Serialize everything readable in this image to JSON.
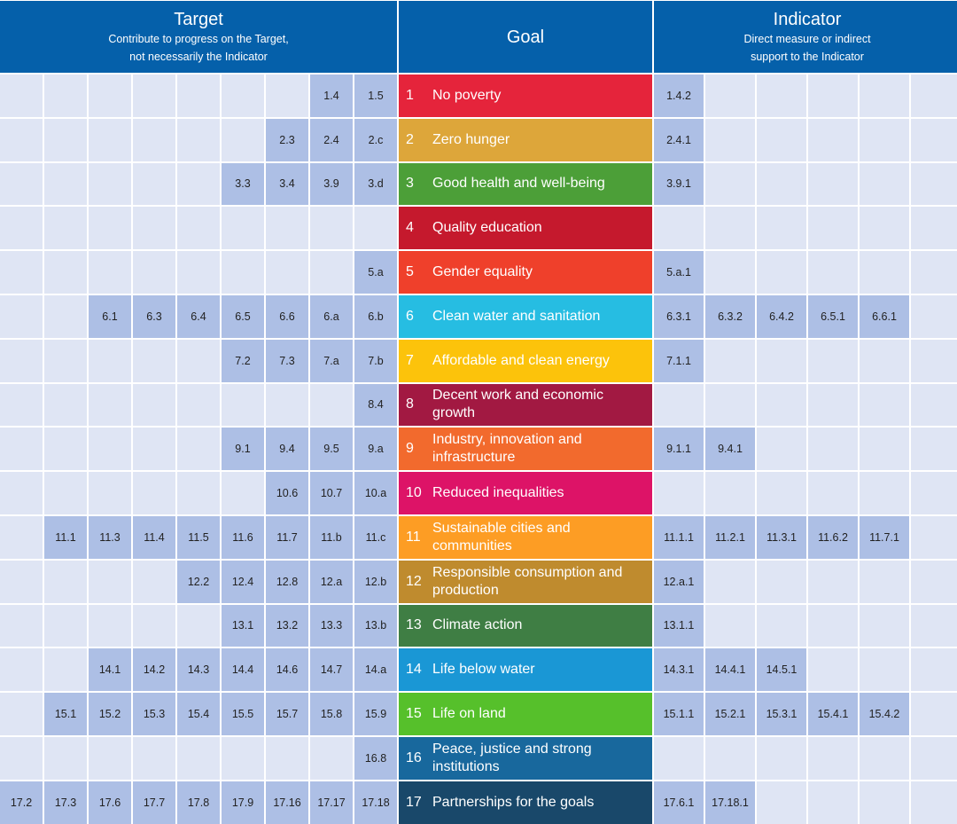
{
  "headers": {
    "target": {
      "title": "Target",
      "subtitle_line1": "Contribute to progress on the Target,",
      "subtitle_line2": "not necessarily the Indicator"
    },
    "goal": {
      "title": "Goal"
    },
    "indicator": {
      "title": "Indicator",
      "subtitle_line1": "Direct measure or indirect",
      "subtitle_line2": "support to the Indicator"
    }
  },
  "colors": {
    "header_bg": "#0560aa",
    "cell_empty": "#dfe5f4",
    "cell_filled": "#adbfe5"
  },
  "rows": [
    {
      "num": "1",
      "goal": "No poverty",
      "color": "#e5243b",
      "targets": [
        "",
        "",
        "",
        "",
        "",
        "",
        "",
        "1.4",
        "1.5"
      ],
      "indicators": [
        "1.4.2",
        "",
        "",
        "",
        "",
        ""
      ]
    },
    {
      "num": "2",
      "goal": "Zero hunger",
      "color": "#dda63a",
      "targets": [
        "",
        "",
        "",
        "",
        "",
        "",
        "2.3",
        "2.4",
        "2.c"
      ],
      "indicators": [
        "2.4.1",
        "",
        "",
        "",
        "",
        ""
      ]
    },
    {
      "num": "3",
      "goal": "Good health and well-being",
      "color": "#4c9f38",
      "targets": [
        "",
        "",
        "",
        "",
        "",
        "3.3",
        "3.4",
        "3.9",
        "3.d"
      ],
      "indicators": [
        "3.9.1",
        "",
        "",
        "",
        "",
        ""
      ]
    },
    {
      "num": "4",
      "goal": "Quality education",
      "color": "#c5192d",
      "targets": [
        "",
        "",
        "",
        "",
        "",
        "",
        "",
        "",
        ""
      ],
      "indicators": [
        "",
        "",
        "",
        "",
        "",
        ""
      ]
    },
    {
      "num": "5",
      "goal": "Gender equality",
      "color": "#ef402b",
      "targets": [
        "",
        "",
        "",
        "",
        "",
        "",
        "",
        "",
        "5.a"
      ],
      "indicators": [
        "5.a.1",
        "",
        "",
        "",
        "",
        ""
      ]
    },
    {
      "num": "6",
      "goal": "Clean water and sanitation",
      "color": "#26bde2",
      "targets": [
        "",
        "",
        "6.1",
        "6.3",
        "6.4",
        "6.5",
        "6.6",
        "6.a",
        "6.b"
      ],
      "indicators": [
        "6.3.1",
        "6.3.2",
        "6.4.2",
        "6.5.1",
        "6.6.1",
        ""
      ]
    },
    {
      "num": "7",
      "goal": "Affordable and clean energy",
      "color": "#fcc30b",
      "targets": [
        "",
        "",
        "",
        "",
        "",
        "7.2",
        "7.3",
        "7.a",
        "7.b"
      ],
      "indicators": [
        "7.1.1",
        "",
        "",
        "",
        "",
        ""
      ]
    },
    {
      "num": "8",
      "goal": "Decent work and economic growth",
      "color": "#a21942",
      "targets": [
        "",
        "",
        "",
        "",
        "",
        "",
        "",
        "",
        "8.4"
      ],
      "indicators": [
        "",
        "",
        "",
        "",
        "",
        ""
      ]
    },
    {
      "num": "9",
      "goal": "Industry, innovation and infrastructure",
      "color": "#f26a2d",
      "targets": [
        "",
        "",
        "",
        "",
        "",
        "9.1",
        "9.4",
        "9.5",
        "9.a"
      ],
      "indicators": [
        "9.1.1",
        "9.4.1",
        "",
        "",
        "",
        ""
      ]
    },
    {
      "num": "10",
      "goal": "Reduced inequalities",
      "color": "#dd1367",
      "targets": [
        "",
        "",
        "",
        "",
        "",
        "",
        "10.6",
        "10.7",
        "10.a"
      ],
      "indicators": [
        "",
        "",
        "",
        "",
        "",
        ""
      ]
    },
    {
      "num": "11",
      "goal": "Sustainable cities and communities",
      "color": "#fd9d24",
      "targets": [
        "",
        "11.1",
        "11.3",
        "11.4",
        "11.5",
        "11.6",
        "11.7",
        "11.b",
        "11.c"
      ],
      "indicators": [
        "11.1.1",
        "11.2.1",
        "11.3.1",
        "11.6.2",
        "11.7.1",
        ""
      ]
    },
    {
      "num": "12",
      "goal": "Responsible consumption and production",
      "color": "#bf8b2e",
      "targets": [
        "",
        "",
        "",
        "",
        "12.2",
        "12.4",
        "12.8",
        "12.a",
        "12.b"
      ],
      "indicators": [
        "12.a.1",
        "",
        "",
        "",
        "",
        ""
      ]
    },
    {
      "num": "13",
      "goal": "Climate action",
      "color": "#3f7e44",
      "targets": [
        "",
        "",
        "",
        "",
        "",
        "13.1",
        "13.2",
        "13.3",
        "13.b"
      ],
      "indicators": [
        "13.1.1",
        "",
        "",
        "",
        "",
        ""
      ]
    },
    {
      "num": "14",
      "goal": "Life below water",
      "color": "#1a97d5",
      "targets": [
        "",
        "",
        "14.1",
        "14.2",
        "14.3",
        "14.4",
        "14.6",
        "14.7",
        "14.a"
      ],
      "indicators": [
        "14.3.1",
        "14.4.1",
        "14.5.1",
        "",
        "",
        ""
      ]
    },
    {
      "num": "15",
      "goal": "Life on land",
      "color": "#56c02b",
      "targets": [
        "",
        "15.1",
        "15.2",
        "15.3",
        "15.4",
        "15.5",
        "15.7",
        "15.8",
        "15.9"
      ],
      "indicators": [
        "15.1.1",
        "15.2.1",
        "15.3.1",
        "15.4.1",
        "15.4.2",
        ""
      ]
    },
    {
      "num": "16",
      "goal": "Peace, justice and strong institutions",
      "color": "#18689d",
      "targets": [
        "",
        "",
        "",
        "",
        "",
        "",
        "",
        "",
        "16.8"
      ],
      "indicators": [
        "",
        "",
        "",
        "",
        "",
        ""
      ]
    },
    {
      "num": "17",
      "goal": "Partnerships for the goals",
      "color": "#19486a",
      "targets": [
        "17.2",
        "17.3",
        "17.6",
        "17.7",
        "17.8",
        "17.9",
        "17.16",
        "17.17",
        "17.18"
      ],
      "indicators": [
        "17.6.1",
        "17.18.1",
        "",
        "",
        "",
        ""
      ]
    }
  ]
}
